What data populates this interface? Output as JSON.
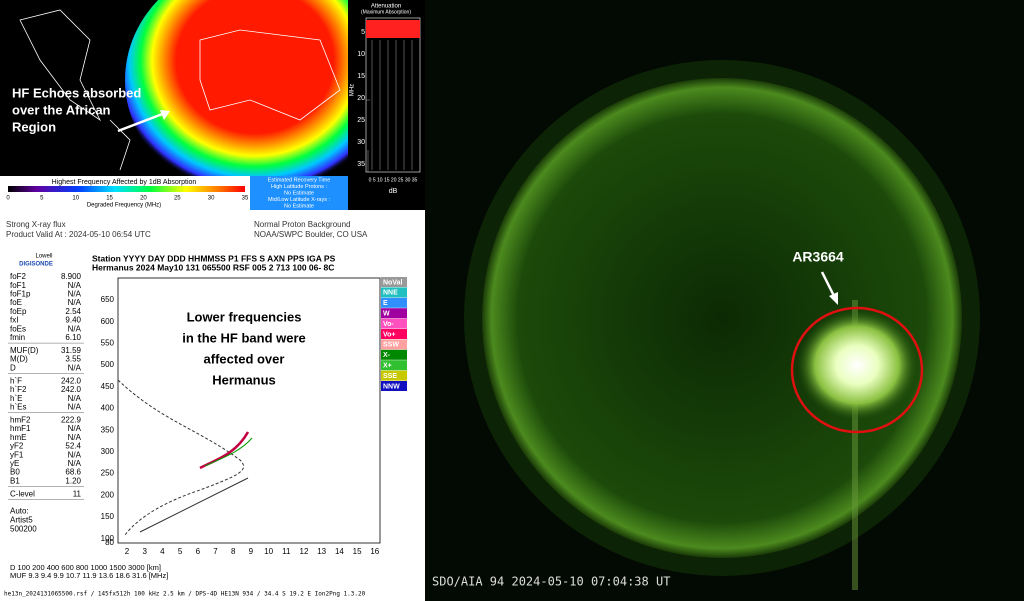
{
  "drap": {
    "annotation": [
      "HF Echoes absorbed",
      "over the African",
      "Region"
    ],
    "colorbar_title": "Highest Frequency Affected by 1dB Absorption",
    "colorbar_ticks": [
      "0",
      "5",
      "10",
      "15",
      "20",
      "25",
      "30",
      "35"
    ],
    "colorbar_label": "Degraded Frequency (MHz)",
    "attenuation_title": "Attenuation",
    "attenuation_subtitle": "(Maximum Absorption)",
    "attenuation_yticks": [
      "5",
      "10",
      "15",
      "20",
      "25",
      "30",
      "35"
    ],
    "attenuation_ylabel": "MHz",
    "attenuation_xticks": "0 5 10 15 20 25 30 35",
    "attenuation_xlabel": "dB",
    "recovery": [
      "Estimated Recovery Time",
      "High Latitude Protons :",
      "No Estimate",
      "Mid/Low Latitude X-rays :",
      "No Estimate"
    ],
    "status_left": [
      "Strong X-ray flux",
      "Product Valid At : 2024-05-10 06:54 UTC"
    ],
    "status_right": [
      "Normal Proton Background",
      "NOAA/SWPC Boulder, CO USA"
    ]
  },
  "ionogram": {
    "logo": [
      "Lowell",
      "DIGISONDE"
    ],
    "header": [
      "Station  YYYY DAY  DDD HHMMSS P1  FFS S AXN PPS IGA PS",
      "Hermanus 2024 May10 131 065500 RSF 005 2 713 100 06- 8C"
    ],
    "params": [
      [
        [
          "foF2",
          "8.900"
        ],
        [
          "foF1",
          "N/A"
        ],
        [
          "foF1p",
          "N/A"
        ],
        [
          "foE",
          "N/A"
        ],
        [
          "foEp",
          "2.54"
        ],
        [
          "fxI",
          "9.40"
        ],
        [
          "foEs",
          "N/A"
        ],
        [
          "fmin",
          "6.10"
        ]
      ],
      [
        [
          "MUF(D)",
          "31.59"
        ],
        [
          "M(D)",
          "3.55"
        ],
        [
          "D",
          "N/A"
        ]
      ],
      [
        [
          "h`F",
          "242.0"
        ],
        [
          "h`F2",
          "242.0"
        ],
        [
          "h`E",
          "N/A"
        ],
        [
          "h`Es",
          "N/A"
        ]
      ],
      [
        [
          "hmF2",
          "222.9"
        ],
        [
          "hmF1",
          "N/A"
        ],
        [
          "hmE",
          "N/A"
        ],
        [
          "yF2",
          "52.4"
        ],
        [
          "yF1",
          "N/A"
        ],
        [
          "yE",
          "N/A"
        ],
        [
          "B0",
          "68.6"
        ],
        [
          "B1",
          "1.20"
        ]
      ],
      [
        [
          "C-level",
          "11"
        ]
      ]
    ],
    "auto": [
      "Auto:",
      "Artist5",
      "500200"
    ],
    "yticks": [
      "650",
      "600",
      "550",
      "500",
      "450",
      "400",
      "350",
      "300",
      "250",
      "200",
      "150",
      "100",
      "80"
    ],
    "xticks": [
      "2",
      "3",
      "4",
      "5",
      "6",
      "7",
      "8",
      "9",
      "10",
      "11",
      "12",
      "13",
      "14",
      "15",
      "16"
    ],
    "annotation": [
      "Lower frequencies",
      "in the HF band were",
      "affected over",
      "Hermanus"
    ],
    "legend": [
      "NoVal",
      "NNE",
      "E",
      "W",
      "Vo-",
      "Vo+",
      "SSW",
      "X-",
      "X+",
      "SSE",
      "NNW"
    ],
    "muf_rows": [
      "D    100  200  400  600  800 1000 1500 3000 [km]",
      "MUF  9.3  9.4  9.9 10.7 11.9 13.6 18.6 31.6 [MHz]"
    ],
    "footer": "he13n_2024131065500.rsf / 145fx512h 100 kHz 2.5 km / DPS-4D HE13N 934 / 34.4 S 19.2 E Ion2Png 1.3.20"
  },
  "sun": {
    "label": "AR3664",
    "caption": "SDO/AIA   94    2024-05-10 07:04:38 UT"
  }
}
